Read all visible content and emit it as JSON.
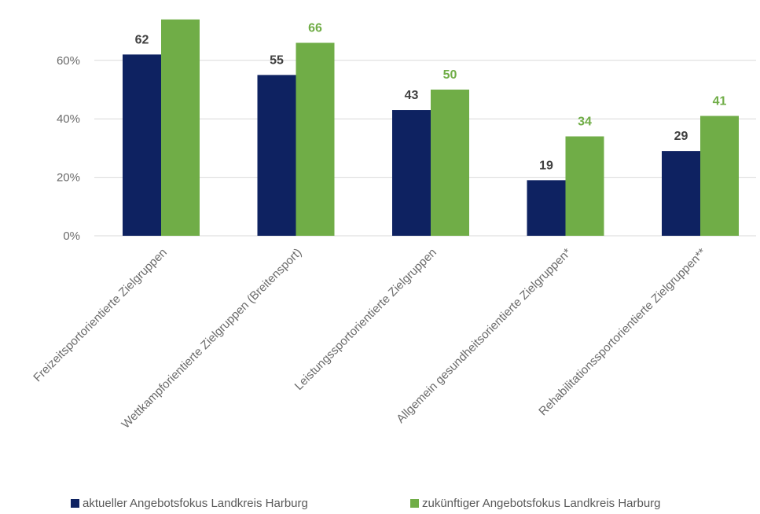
{
  "chart_data": {
    "type": "bar",
    "categories": [
      "Freizeitsportorientierte Zielgruppen",
      "Wettkampforientierte Zielgruppen (Breitensport)",
      "Leistungssportorientierte Zielgruppen",
      "Allgemein gesundheitsorientierte Zielgruppen*",
      "Rehabilitationssportorientierte Zielgruppen**"
    ],
    "series": [
      {
        "name": "aktueller Angebotsfokus Landkreis Harburg",
        "values": [
          62,
          55,
          43,
          19,
          29
        ],
        "color": "#0e2261"
      },
      {
        "name": "zukünftiger Angebotsfokus Landkreis Harburg",
        "values": [
          74,
          66,
          50,
          34,
          41
        ],
        "color": "#70ad47"
      }
    ],
    "data_labels": [
      [
        "62",
        "55",
        "43",
        "19",
        "29"
      ],
      [
        "",
        "66",
        "50",
        "34",
        "41"
      ]
    ],
    "label_colors": [
      "#404040",
      "#70ad47"
    ],
    "yticks": [
      "0%",
      "20%",
      "40%",
      "60%"
    ],
    "ytick_values": [
      0,
      20,
      40,
      60
    ],
    "ylim": [
      0,
      80
    ],
    "grid": true,
    "legend_position": "bottom"
  }
}
